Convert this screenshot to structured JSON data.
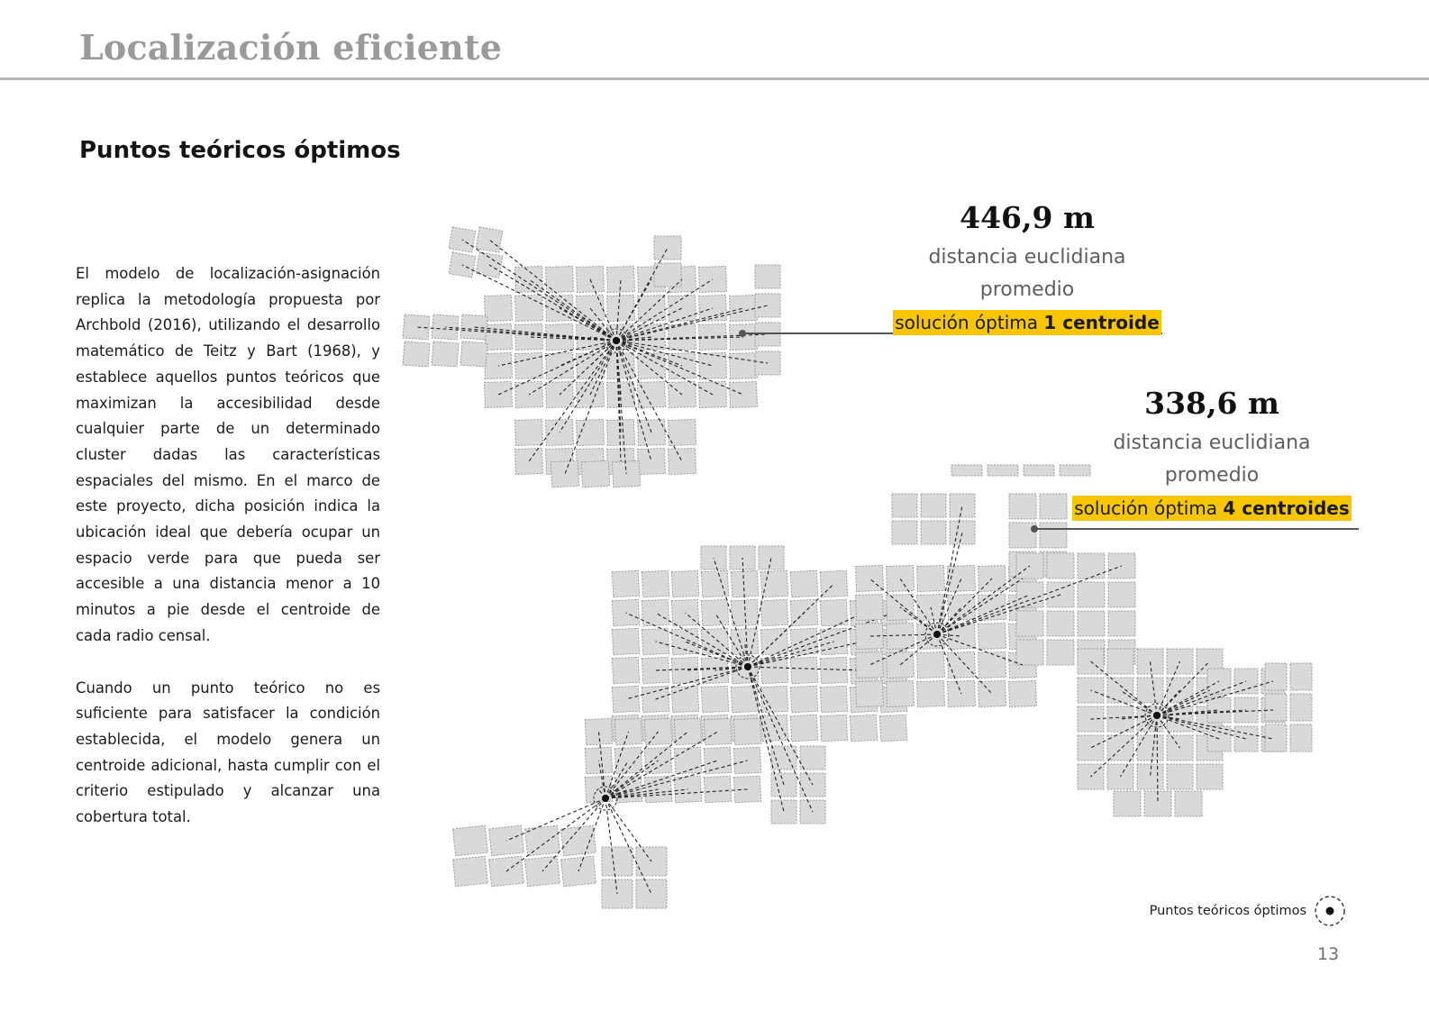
{
  "header": {
    "title": "Localización eficiente"
  },
  "section": {
    "heading": "Puntos teóricos óptimos"
  },
  "body": {
    "paragraph_1": "El modelo de localización-asignación replica la metodología propuesta por Archbold (2016), utilizando el desarrollo matemático de Teitz y Bart (1968), y establece aquellos puntos teóricos que maximizan la accesibilidad desde cualquier parte de un determinado cluster dadas las características espaciales del mismo. En el marco de este proyecto, dicha posición indica la ubicación ideal que debería ocupar un espacio verde para que pueda ser accesible a una distancia menor a 10 minutos a pie desde el centroide de cada radio censal.",
    "paragraph_2": "Cuando un punto teórico no es suficiente para satisfacer la condición establecida, el modelo genera un centroide adicional, hasta cumplir con el criterio estipulado y alcanzar una cobertura total."
  },
  "stat_1": {
    "value": "446,9 m",
    "desc_line_1": "distancia euclidiana",
    "desc_line_2": "promedio",
    "solution_prefix": "solución óptima ",
    "solution_bold": "1 centroide"
  },
  "stat_2": {
    "value": "338,6 m",
    "desc_line_1": "distancia euclidiana",
    "desc_line_2": "promedio",
    "solution_prefix": "solución óptima ",
    "solution_bold": "4 centroides"
  },
  "legend": {
    "label": "Puntos teóricos óptimos",
    "icon": "dashed-circle-dot-icon"
  },
  "page_number": "13",
  "colors": {
    "title_gray": "#9a9a9a",
    "highlight_yellow": "#f7c600",
    "block_fill": "#d9d9d9",
    "block_stroke": "#9a9a9a"
  }
}
